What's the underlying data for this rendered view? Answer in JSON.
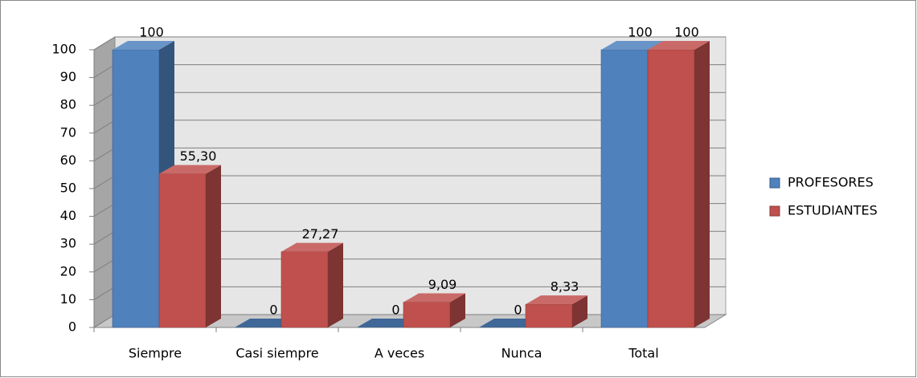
{
  "chart_data": {
    "type": "bar3d",
    "categories": [
      "Siempre",
      "Casi siempre",
      "A veces",
      "Nunca",
      "Total"
    ],
    "series": [
      {
        "name": "PROFESORES",
        "color": "#4f81bd",
        "values": [
          100,
          0,
          0,
          0,
          100
        ]
      },
      {
        "name": "ESTUDIANTES",
        "color": "#c0504d",
        "values": [
          55.3,
          27.27,
          9.09,
          8.33,
          100
        ],
        "value_labels": [
          "55,30",
          "27,27",
          "9,09",
          "8,33",
          "100"
        ]
      }
    ],
    "ylim": [
      0,
      100
    ],
    "yticks": [
      0,
      10,
      20,
      30,
      40,
      50,
      60,
      70,
      80,
      90,
      100
    ],
    "grid": true,
    "legend": "right"
  }
}
